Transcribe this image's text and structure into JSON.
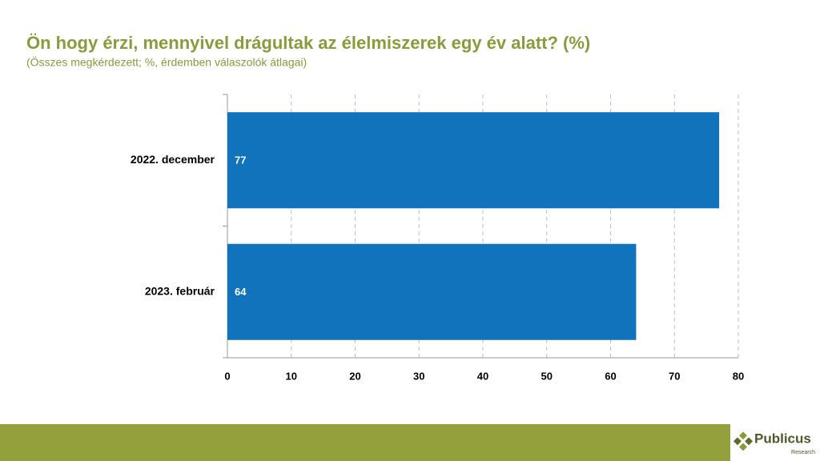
{
  "chart_data": {
    "type": "bar",
    "orientation": "horizontal",
    "title": "Ön hogy érzi, mennyivel drágultak az élelmiszerek egy év alatt? (%)",
    "subtitle": "(Összes megkérdezett; %, érdemben válaszolók átlagai)",
    "categories": [
      "2022. december",
      "2023. február"
    ],
    "values": [
      77,
      64
    ],
    "color": "#1173bb",
    "xlim": [
      0,
      80
    ],
    "xticks": [
      0,
      10,
      20,
      30,
      40,
      50,
      60,
      70,
      80
    ],
    "grid": true
  },
  "logo": {
    "name": "Publicus",
    "tagline": "Research"
  }
}
